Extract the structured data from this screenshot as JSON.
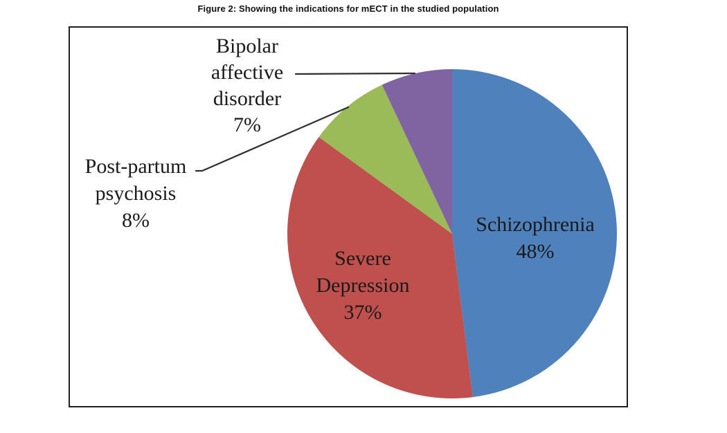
{
  "figure": {
    "caption": "Figure 2: Showing the indications for mECT in the studied population"
  },
  "chart_data": {
    "type": "pie",
    "title": "Figure 2: Showing the indications for mECT in the studied population",
    "categories": [
      "Schizophrenia",
      "Severe Depression",
      "Post-partum psychosis",
      "Bipolar affective disorder"
    ],
    "values": [
      48,
      37,
      8,
      7
    ],
    "unit": "%",
    "colors": [
      "#4F81BD",
      "#C0504D",
      "#9BBB59",
      "#8064A2"
    ],
    "start_angle": "top",
    "direction": "clockwise",
    "legend": "none",
    "label_color": "#1a1a1a",
    "leader_line_color": "#2e2e2e",
    "labels": {
      "schizophrenia": "Schizophrenia\n48%",
      "severe_depression": "Severe\nDepression\n37%",
      "post_partum": "Post-partum\npsychosis\n8%",
      "bipolar": "Bipolar\naffective\ndisorder\n7%"
    }
  }
}
